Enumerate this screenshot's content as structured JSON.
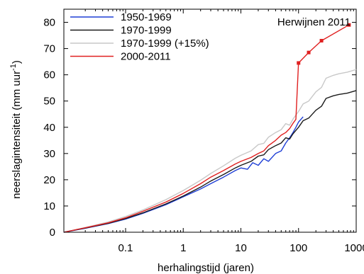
{
  "chart_data": {
    "type": "line",
    "annotation": "Herwijnen 2011",
    "xlabel": "herhalingstijd (jaren)",
    "ylabel": {
      "main": "neerslagintensiteit (mm uur",
      "sup": "-1",
      "close": ")"
    },
    "x_scale": "log",
    "xlim": [
      0.0085,
      1000
    ],
    "ylim": [
      0,
      85
    ],
    "x_ticks": [
      0.1,
      1,
      10,
      100,
      1000
    ],
    "x_tick_labels": [
      "0.1",
      "1",
      "10",
      "100",
      "1000"
    ],
    "y_ticks": [
      0,
      10,
      20,
      30,
      40,
      50,
      60,
      70,
      80
    ],
    "y_tick_labels": [
      "0",
      "10",
      "20",
      "30",
      "40",
      "50",
      "60",
      "70",
      "80"
    ],
    "grid": false,
    "legend_position": "top-left",
    "series": [
      {
        "name": "1950-1969",
        "color": "#1f3fd6",
        "markers": false,
        "x": [
          0.0085,
          0.02,
          0.05,
          0.1,
          0.2,
          0.5,
          1,
          2,
          3,
          5,
          8,
          10,
          13,
          16,
          20,
          25,
          30,
          40,
          50,
          60,
          70,
          80,
          90,
          100,
          110,
          120
        ],
        "y": [
          0,
          1.5,
          3.3,
          5,
          7.2,
          10.5,
          13.5,
          16.5,
          18.5,
          21,
          23.5,
          24.5,
          24,
          26.5,
          25.5,
          28,
          27,
          30,
          31,
          34,
          36,
          38,
          40,
          42,
          43,
          44
        ]
      },
      {
        "name": "1970-1999",
        "color": "#1a1a1a",
        "markers": false,
        "x": [
          0.0085,
          0.02,
          0.05,
          0.1,
          0.2,
          0.5,
          1,
          2,
          3,
          5,
          8,
          10,
          15,
          20,
          25,
          30,
          40,
          50,
          60,
          70,
          80,
          100,
          120,
          150,
          200,
          250,
          300,
          400,
          500,
          700,
          1000
        ],
        "y": [
          0,
          1.6,
          3.4,
          5.2,
          7.4,
          10.8,
          13.8,
          17.2,
          19.5,
          22,
          24.5,
          25.5,
          27,
          29,
          29.5,
          31.5,
          33,
          34,
          36,
          35.5,
          37.5,
          40,
          42.5,
          43.5,
          46.5,
          48,
          51,
          52,
          52.5,
          53,
          54
        ]
      },
      {
        "name": "1970-1999 (+15%)",
        "color": "#c8c8c8",
        "markers": false,
        "x": [
          0.0085,
          0.02,
          0.05,
          0.1,
          0.2,
          0.5,
          1,
          2,
          3,
          5,
          8,
          10,
          15,
          20,
          25,
          30,
          40,
          50,
          60,
          70,
          80,
          100,
          120,
          150,
          200,
          250,
          300,
          400,
          500,
          700,
          1000
        ],
        "y": [
          0,
          1.8,
          3.9,
          6,
          8.5,
          12.4,
          15.9,
          19.8,
          22.4,
          25.3,
          28.2,
          29.3,
          31,
          33.4,
          33.9,
          36.2,
          38,
          39.1,
          41.4,
          40.8,
          43.1,
          46,
          48.9,
          50,
          53.5,
          55.2,
          58.7,
          59.8,
          60.4,
          61,
          62
        ]
      },
      {
        "name": "2000-2011",
        "color": "#e02020",
        "markers": false,
        "x": [
          0.0085,
          0.02,
          0.05,
          0.1,
          0.2,
          0.5,
          1,
          2,
          3,
          5,
          8,
          10,
          15,
          20,
          25,
          30,
          40,
          50,
          60,
          70,
          80,
          90,
          100
        ],
        "y": [
          0,
          1.7,
          3.6,
          5.5,
          8,
          11.5,
          14.8,
          18.5,
          21,
          23.5,
          26,
          27,
          28.5,
          30,
          31,
          33,
          35,
          37,
          38,
          39.5,
          41.5,
          43,
          64.5
        ]
      },
      {
        "name": "",
        "color": "#e02020",
        "markers": true,
        "x": [
          100,
          150,
          250,
          750
        ],
        "y": [
          64.5,
          68.5,
          73,
          79
        ]
      }
    ]
  }
}
